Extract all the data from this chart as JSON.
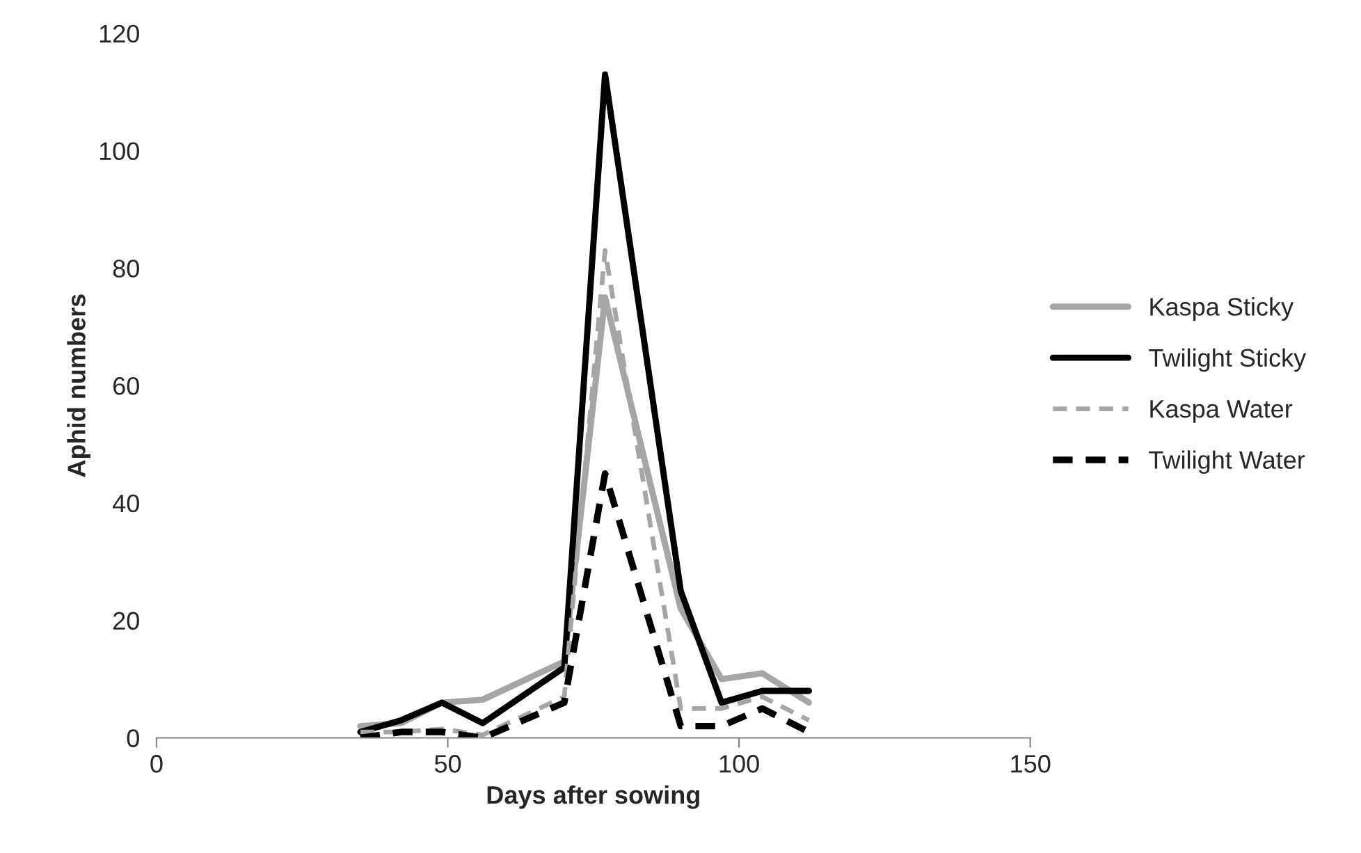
{
  "chart_data": {
    "type": "line",
    "xlabel": "Days after sowing",
    "ylabel": "Aphid numbers",
    "xlim": [
      0,
      150
    ],
    "xticks": [
      0,
      50,
      100,
      150
    ],
    "ylim": [
      0,
      120
    ],
    "yticks": [
      0,
      20,
      40,
      60,
      80,
      100,
      120
    ],
    "grid": false,
    "legend": "right",
    "marker": "none",
    "series": [
      {
        "name": "Kaspa Sticky",
        "color": "#a6a6a6",
        "line_style": "solid",
        "x": [
          35,
          42,
          49,
          56,
          70,
          77,
          90,
          97,
          104,
          112
        ],
        "values": [
          2,
          2.5,
          6,
          6.5,
          13,
          75,
          22,
          10,
          11,
          6
        ]
      },
      {
        "name": "Twilight Sticky",
        "color": "#000000",
        "line_style": "solid",
        "x": [
          35,
          42,
          49,
          56,
          70,
          77,
          90,
          97,
          104,
          112
        ],
        "values": [
          1,
          3,
          6,
          2.5,
          12,
          113,
          25,
          6,
          8,
          8
        ]
      },
      {
        "name": "Kaspa Water",
        "color": "#a6a6a6",
        "line_style": "dashed",
        "x": [
          35,
          42,
          49,
          56,
          70,
          77,
          90,
          97,
          104,
          112
        ],
        "values": [
          1,
          1,
          1.5,
          0.5,
          7,
          83,
          5,
          5,
          7,
          3
        ]
      },
      {
        "name": "Twilight Water",
        "color": "#000000",
        "line_style": "dashed",
        "x": [
          35,
          42,
          49,
          56,
          70,
          77,
          90,
          97,
          104,
          112
        ],
        "values": [
          0,
          1,
          1,
          0,
          6,
          45,
          2,
          2,
          5,
          1
        ]
      }
    ]
  }
}
